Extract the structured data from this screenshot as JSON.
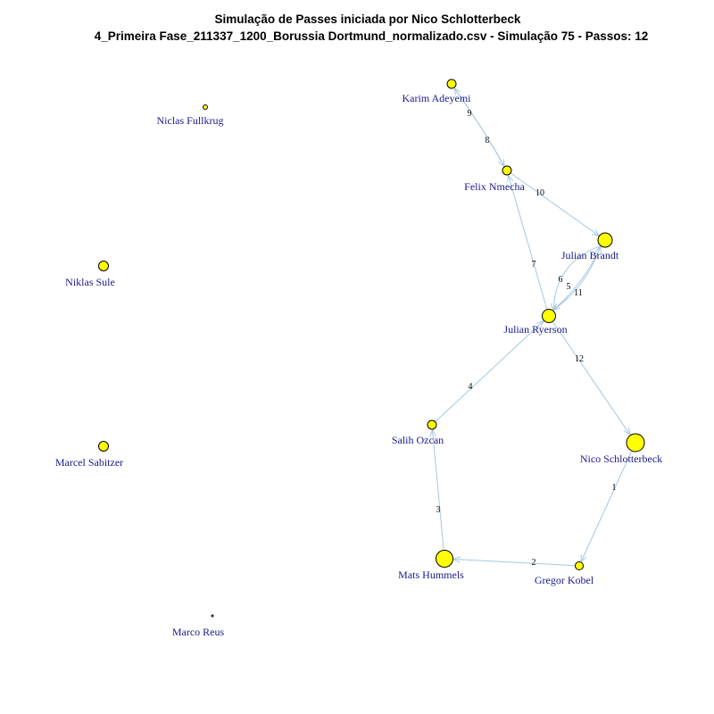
{
  "title": {
    "line1": "Simulação de Passes iniciada por Nico Schlotterbeck",
    "line2": "4_Primeira Fase_211337_1200_Borussia Dortmund_normalizado.csv - Simulação 75 - Passos: 12"
  },
  "colors": {
    "node_fill": "#ffff00",
    "node_stroke": "#000000",
    "edge": "#a6c8e0",
    "label": "#1a1a8c"
  },
  "nodes": [
    {
      "id": "karim",
      "label": "Karim Adeyemi"
    },
    {
      "id": "fullkrug",
      "label": "Niclas Fullkrug"
    },
    {
      "id": "nmecha",
      "label": "Felix Nmecha"
    },
    {
      "id": "brandt",
      "label": "Julian Brandt"
    },
    {
      "id": "sule",
      "label": "Niklas Sule"
    },
    {
      "id": "ryerson",
      "label": "Julian Ryerson"
    },
    {
      "id": "ozcan",
      "label": "Salih Ozcan"
    },
    {
      "id": "schlotterbeck",
      "label": "Nico Schlotterbeck"
    },
    {
      "id": "sabitzer",
      "label": "Marcel Sabitzer"
    },
    {
      "id": "hummels",
      "label": "Mats Hummels"
    },
    {
      "id": "kobel",
      "label": "Gregor Kobel"
    },
    {
      "id": "reus",
      "label": "Marco Reus"
    }
  ],
  "edges": [
    {
      "step": "1",
      "from": "schlotterbeck",
      "to": "kobel"
    },
    {
      "step": "2",
      "from": "kobel",
      "to": "hummels"
    },
    {
      "step": "3",
      "from": "hummels",
      "to": "ozcan"
    },
    {
      "step": "4",
      "from": "ozcan",
      "to": "ryerson"
    },
    {
      "step": "5",
      "from": "ryerson",
      "to": "brandt"
    },
    {
      "step": "6",
      "from": "brandt",
      "to": "ryerson"
    },
    {
      "step": "7",
      "from": "ryerson",
      "to": "nmecha"
    },
    {
      "step": "8",
      "from": "nmecha",
      "to": "karim"
    },
    {
      "step": "9",
      "from": "karim",
      "to": "nmecha"
    },
    {
      "step": "10",
      "from": "nmecha",
      "to": "brandt"
    },
    {
      "step": "11",
      "from": "brandt",
      "to": "ryerson"
    },
    {
      "step": "12",
      "from": "ryerson",
      "to": "schlotterbeck"
    }
  ]
}
